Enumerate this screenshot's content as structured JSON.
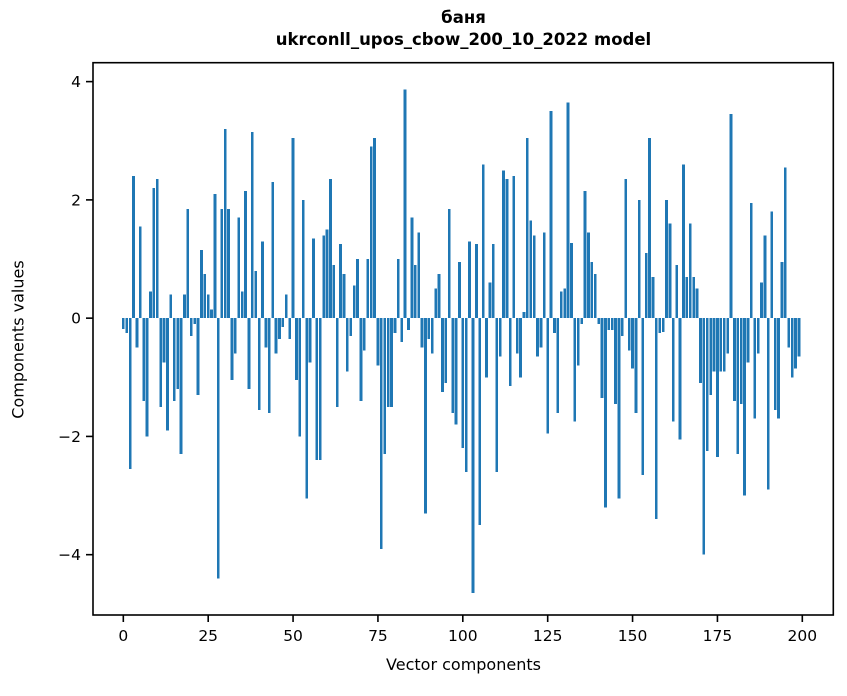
{
  "figure": {
    "title": "баня",
    "subtitle": "ukrconll_upos_cbow_200_10_2022 model",
    "xlabel": "Vector components",
    "ylabel": "Components values"
  },
  "chart_data": {
    "type": "bar",
    "title": "баня",
    "subtitle": "ukrconll_upos_cbow_200_10_2022 model",
    "xlabel": "Vector components",
    "ylabel": "Components values",
    "legend": "none",
    "grid": false,
    "bar_color": "#1f77b4",
    "axis_color": "#000000",
    "n_components": 200,
    "bar_width": 0.8,
    "xlim": [
      -8.93,
      209.13
    ],
    "ylim": [
      -5.02,
      4.32
    ],
    "x_ticks": [
      {
        "v": 0,
        "label": "0"
      },
      {
        "v": 25,
        "label": "25"
      },
      {
        "v": 50,
        "label": "50"
      },
      {
        "v": 75,
        "label": "75"
      },
      {
        "v": 100,
        "label": "100"
      },
      {
        "v": 125,
        "label": "125"
      },
      {
        "v": 150,
        "label": "150"
      },
      {
        "v": 175,
        "label": "175"
      },
      {
        "v": 200,
        "label": "200"
      }
    ],
    "y_ticks": [
      {
        "v": -4,
        "label": "−4"
      },
      {
        "v": -2,
        "label": "−2"
      },
      {
        "v": 0,
        "label": "0"
      },
      {
        "v": 2,
        "label": "2"
      },
      {
        "v": 4,
        "label": "4"
      }
    ],
    "values": [
      -0.18,
      -0.25,
      -2.55,
      2.4,
      -0.5,
      1.55,
      -1.4,
      -2.0,
      0.45,
      2.2,
      2.35,
      -1.5,
      -0.75,
      -1.9,
      0.4,
      -1.4,
      -1.2,
      -2.3,
      0.4,
      1.85,
      -0.3,
      -0.1,
      -1.3,
      1.15,
      0.75,
      0.4,
      0.15,
      2.1,
      -4.4,
      1.85,
      3.2,
      1.85,
      -1.05,
      -0.6,
      1.7,
      0.45,
      2.15,
      -1.2,
      3.15,
      0.8,
      -1.55,
      1.3,
      -0.5,
      -1.6,
      2.3,
      -0.6,
      -0.35,
      -0.15,
      0.4,
      -0.35,
      3.05,
      -1.05,
      -2.0,
      2.0,
      -3.05,
      -0.75,
      1.35,
      -2.4,
      -2.4,
      1.4,
      1.5,
      2.35,
      0.9,
      -1.5,
      1.25,
      0.75,
      -0.9,
      -0.3,
      0.55,
      1.0,
      -1.4,
      -0.55,
      1.0,
      2.9,
      3.05,
      -0.8,
      -3.9,
      -2.3,
      -1.5,
      -1.5,
      -0.25,
      1.0,
      -0.4,
      3.87,
      -0.2,
      1.7,
      0.9,
      1.45,
      -0.5,
      -3.3,
      -0.35,
      -0.6,
      0.5,
      0.75,
      -1.25,
      -1.1,
      1.85,
      -1.6,
      -1.8,
      0.95,
      -2.2,
      -2.6,
      1.3,
      -4.65,
      1.25,
      -3.5,
      2.6,
      -1.0,
      0.6,
      1.25,
      -2.6,
      -0.65,
      2.5,
      2.35,
      -1.15,
      2.4,
      -0.6,
      -1.0,
      0.1,
      3.05,
      1.65,
      1.4,
      -0.65,
      -0.5,
      1.45,
      -1.95,
      3.5,
      -0.25,
      -1.6,
      0.45,
      0.5,
      3.65,
      1.27,
      -1.75,
      -0.8,
      -0.1,
      2.15,
      1.45,
      0.95,
      0.75,
      -0.1,
      -1.35,
      -3.2,
      -0.2,
      -0.2,
      -1.45,
      -3.05,
      -0.3,
      2.35,
      -0.55,
      -0.85,
      -1.6,
      2.0,
      -2.65,
      1.1,
      3.05,
      0.7,
      -3.4,
      -0.25,
      -0.23,
      2.0,
      1.6,
      -1.75,
      0.9,
      -2.05,
      2.6,
      0.7,
      1.6,
      0.7,
      0.5,
      -1.1,
      -4.0,
      -2.25,
      -1.3,
      -0.9,
      -2.35,
      -0.9,
      -0.9,
      -0.6,
      3.45,
      -1.4,
      -2.3,
      -1.45,
      -3.0,
      -0.75,
      1.95,
      -1.7,
      -0.6,
      0.6,
      1.4,
      -2.9,
      1.8,
      -1.55,
      -1.7,
      0.95,
      2.55,
      -0.5,
      -1.0,
      -0.85,
      -0.65
    ]
  }
}
